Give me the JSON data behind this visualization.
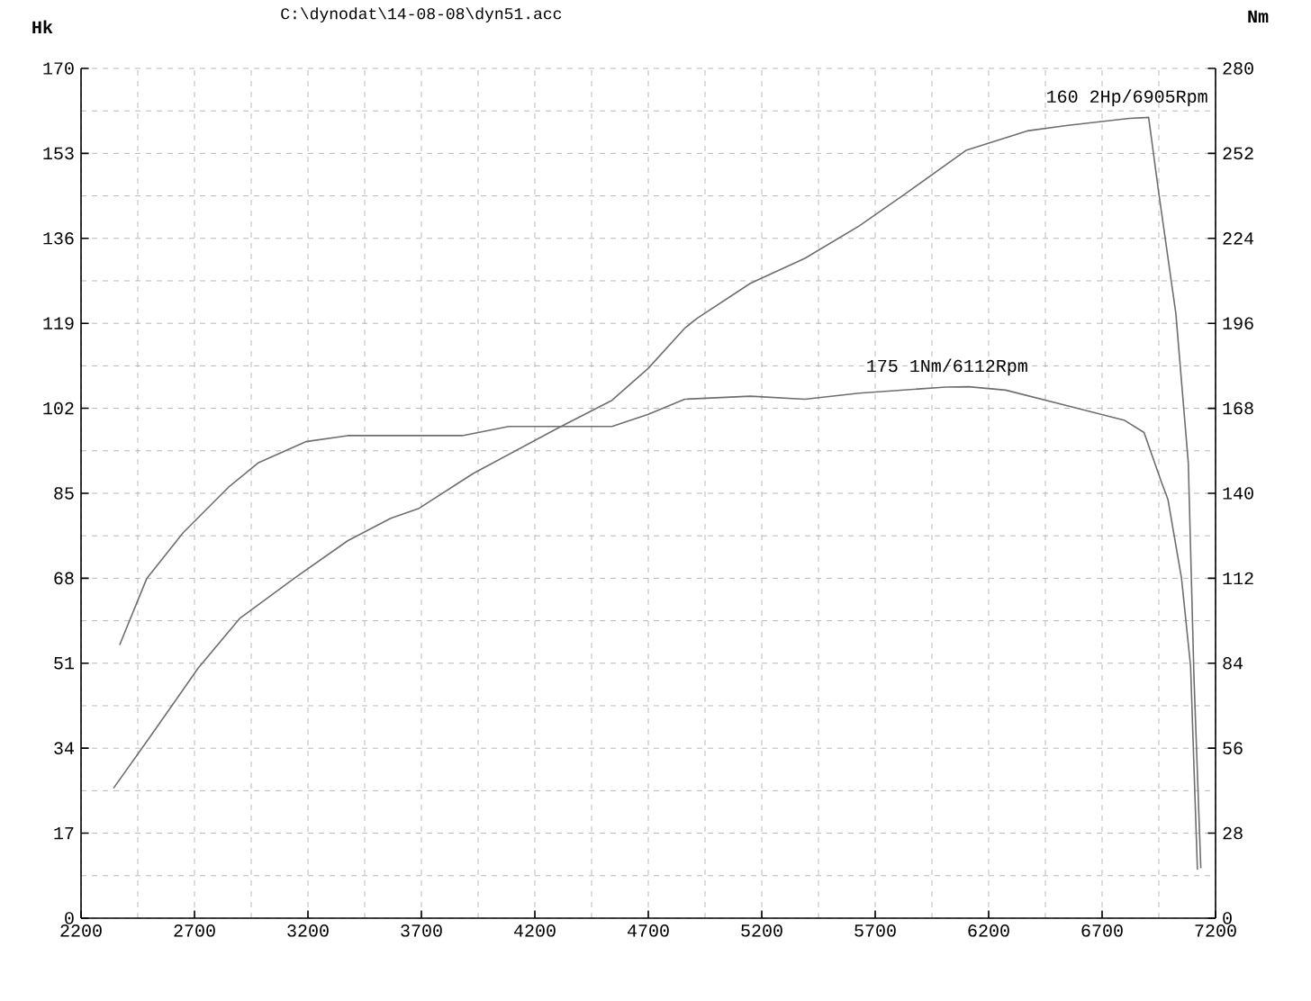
{
  "chart_data": {
    "type": "line",
    "title": "C:\\dynodat\\14-08-08\\dyn51.acc",
    "ylabel": "Hk",
    "y2label": "Nm",
    "xlim": [
      2200,
      7200
    ],
    "xticks": [
      2200,
      2700,
      3200,
      3700,
      4200,
      4700,
      5200,
      5700,
      6200,
      6700,
      7200
    ],
    "ylim": [
      0,
      170
    ],
    "yticks": [
      0,
      17,
      34,
      51,
      68,
      85,
      102,
      119,
      136,
      153,
      170
    ],
    "y2lim": [
      0,
      280
    ],
    "y2ticks": [
      0,
      28,
      56,
      84,
      112,
      140,
      168,
      196,
      224,
      252,
      280
    ],
    "grid": true,
    "marker": "none",
    "line_style": "solid",
    "series": [
      {
        "color": "#6e6e6e",
        "x": [
          2343,
          2500,
          2716,
          2900,
          3140,
          3375,
          3565,
          3690,
          3930,
          4300,
          4540,
          4700,
          4860,
          4915,
          5150,
          5390,
          5630,
          5835,
          6100,
          6370,
          6550,
          6820,
          6905,
          6950,
          7025,
          7080,
          7105,
          7135
        ],
        "values": [
          26,
          36,
          50,
          60,
          68,
          75.5,
          80,
          82,
          89,
          98,
          103.6,
          110,
          118,
          120,
          127,
          132,
          138.5,
          145,
          153.6,
          157.5,
          158.6,
          160,
          160.2,
          145,
          121,
          91,
          48,
          10
        ]
      },
      {
        "color": "#6e6e6e",
        "axis": "y2",
        "x": [
          2370,
          2490,
          2650,
          2850,
          2980,
          3190,
          3375,
          3610,
          3880,
          4085,
          4540,
          4700,
          4860,
          5150,
          5390,
          5630,
          6012,
          6112,
          6275,
          6590,
          6800,
          6885,
          6960,
          6990,
          7050,
          7090,
          7120
        ],
        "values": [
          90,
          112,
          127,
          142,
          150,
          157,
          159,
          159,
          159,
          162,
          162,
          166,
          171,
          172,
          171,
          173,
          175,
          175.1,
          174,
          168,
          164,
          160,
          144,
          138,
          112,
          83,
          16
        ]
      }
    ],
    "annotations": [
      "160 2Hp/6905Rpm",
      "175 1Nm/6112Rpm"
    ]
  }
}
